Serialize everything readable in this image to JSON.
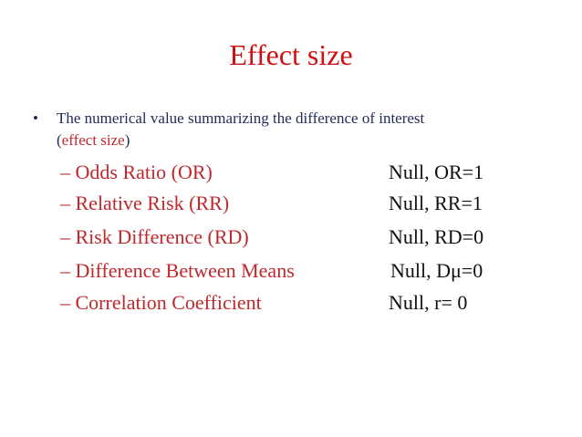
{
  "title": "Effect size",
  "bullet": {
    "marker": "•",
    "text": "The numerical value summarizing the difference of interest",
    "paren_open": "(",
    "highlight": "effect size",
    "paren_close": ")"
  },
  "items": [
    {
      "label": "– Odds Ratio (OR)",
      "null": "Null, OR=1"
    },
    {
      "label": "– Relative Risk (RR)",
      "null": "Null, RR=1"
    },
    {
      "label": "– Risk Difference (RD)",
      "null": "Null, RD=0"
    },
    {
      "label": "– Difference Between Means",
      "null": "Null, Dμ=0"
    },
    {
      "label": "– Correlation Coefficient",
      "null": "Null,  r= 0"
    }
  ]
}
